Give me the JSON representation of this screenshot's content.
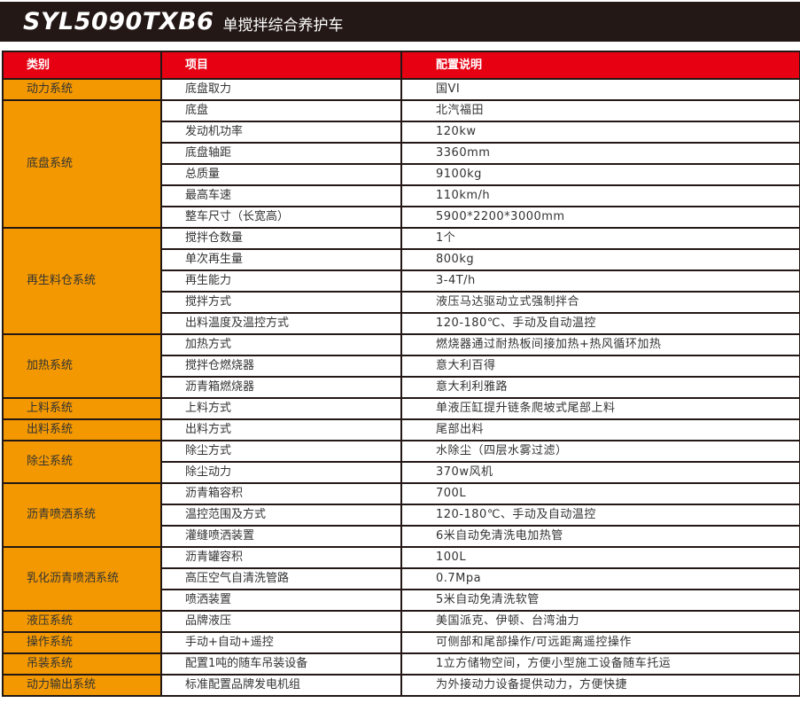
{
  "header": {
    "model": "SYL5090TXB6",
    "subtitle": "单搅拌综合养护车"
  },
  "colors": {
    "title_bg": "#231815",
    "header_bg": "#e60012",
    "category_bg": "#f39800"
  },
  "table": {
    "columns": [
      "类别",
      "项目",
      "配置说明"
    ],
    "groups": [
      {
        "category": "动力系统",
        "rows": [
          [
            "底盘取力",
            "国VI"
          ]
        ]
      },
      {
        "category": "底盘系统",
        "rows": [
          [
            "底盘",
            "北汽福田"
          ],
          [
            "发动机功率",
            "120kw"
          ],
          [
            "底盘轴距",
            "3360mm"
          ],
          [
            "总质量",
            "9100kg"
          ],
          [
            "最高车速",
            "110km/h"
          ],
          [
            "整车尺寸（长宽高）",
            "5900*2200*3000mm"
          ]
        ]
      },
      {
        "category": "再生料仓系统",
        "rows": [
          [
            "搅拌仓数量",
            "1个"
          ],
          [
            "单次再生量",
            "800kg"
          ],
          [
            "再生能力",
            "3-4T/h"
          ],
          [
            "搅拌方式",
            "液压马达驱动立式强制拌合"
          ],
          [
            "出料温度及温控方式",
            "120-180℃、手动及自动温控"
          ]
        ]
      },
      {
        "category": "加热系统",
        "rows": [
          [
            "加热方式",
            "燃烧器通过耐热板间接加热+热风循环加热"
          ],
          [
            "搅拌仓燃烧器",
            "意大利百得"
          ],
          [
            "沥青箱燃烧器",
            "意大利利雅路"
          ]
        ]
      },
      {
        "category": "上料系统",
        "rows": [
          [
            "上料方式",
            "单液压缸提升链条爬坡式尾部上料"
          ]
        ]
      },
      {
        "category": "出料系统",
        "rows": [
          [
            "出料方式",
            "尾部出料"
          ]
        ]
      },
      {
        "category": "除尘系统",
        "rows": [
          [
            "除尘方式",
            "水除尘（四层水雾过滤）"
          ],
          [
            "除尘动力",
            "370w风机"
          ]
        ]
      },
      {
        "category": "沥青喷洒系统",
        "rows": [
          [
            "沥青箱容积",
            "700L"
          ],
          [
            "温控范围及方式",
            "120-180℃、手动及自动温控"
          ],
          [
            "灌缝喷洒装置",
            "6米自动免清洗电加热管"
          ]
        ]
      },
      {
        "category": "乳化沥青喷洒系统",
        "rows": [
          [
            "沥青罐容积",
            "100L"
          ],
          [
            "高压空气自清洗管路",
            "0.7Mpa"
          ],
          [
            "喷洒装置",
            "5米自动免清洗软管"
          ]
        ]
      },
      {
        "category": "液压系统",
        "rows": [
          [
            "品牌液压",
            "美国派克、伊顿、台湾油力"
          ]
        ]
      },
      {
        "category": "操作系统",
        "rows": [
          [
            "手动+自动+遥控",
            "可侧部和尾部操作/可远距离遥控操作"
          ]
        ]
      },
      {
        "category": "吊装系统",
        "rows": [
          [
            "配置1吨的随车吊装设备",
            "1立方储物空间，方便小型施工设备随车托运"
          ]
        ]
      },
      {
        "category": "动力输出系统",
        "rows": [
          [
            "标准配置品牌发电机组",
            "为外接动力设备提供动力，方便快捷"
          ]
        ]
      }
    ]
  }
}
